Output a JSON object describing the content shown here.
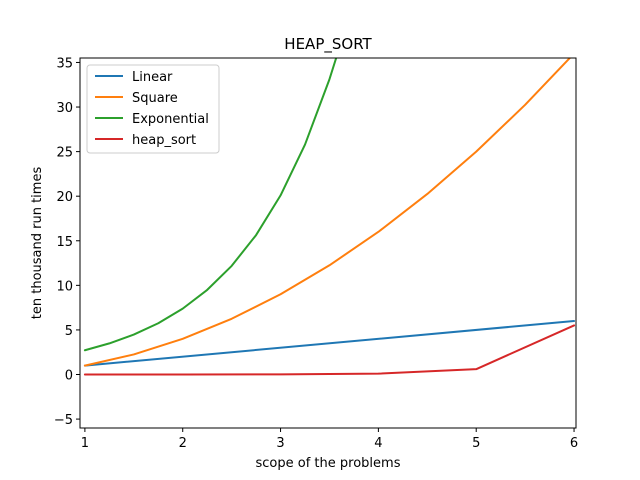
{
  "chart_data": {
    "type": "line",
    "title": "HEAP_SORT",
    "xlabel": "scope of the problems",
    "ylabel": "ten thousand run times",
    "xlim": [
      0.95,
      6.02
    ],
    "ylim": [
      -6,
      35.5
    ],
    "xticks": [
      1,
      2,
      3,
      4,
      5,
      6
    ],
    "yticks": [
      -5,
      0,
      5,
      10,
      15,
      20,
      25,
      30,
      35
    ],
    "grid": false,
    "legend_position": "top-left",
    "series": [
      {
        "name": "Linear",
        "color": "#1f77b4",
        "x": [
          1,
          6
        ],
        "y": [
          1,
          6
        ]
      },
      {
        "name": "Square",
        "color": "#ff7f0e",
        "x": [
          1,
          1.5,
          2,
          2.5,
          3,
          3.5,
          4,
          4.5,
          5,
          5.5,
          6
        ],
        "y": [
          1,
          2.25,
          4,
          6.25,
          9,
          12.25,
          16,
          20.25,
          25,
          30.25,
          36
        ]
      },
      {
        "name": "Exponential",
        "color": "#2ca02c",
        "x": [
          1,
          1.25,
          1.5,
          1.75,
          2,
          2.25,
          2.5,
          2.75,
          3,
          3.25,
          3.5,
          3.6,
          3.7
        ],
        "y": [
          2.72,
          3.49,
          4.48,
          5.75,
          7.39,
          9.49,
          12.18,
          15.64,
          20.09,
          25.79,
          33.12,
          36.6,
          40.45
        ]
      },
      {
        "name": "heap_sort",
        "color": "#d62728",
        "x": [
          1,
          2,
          3,
          4,
          5,
          6
        ],
        "y": [
          0,
          0,
          0.02,
          0.1,
          0.6,
          5.5
        ]
      }
    ]
  }
}
